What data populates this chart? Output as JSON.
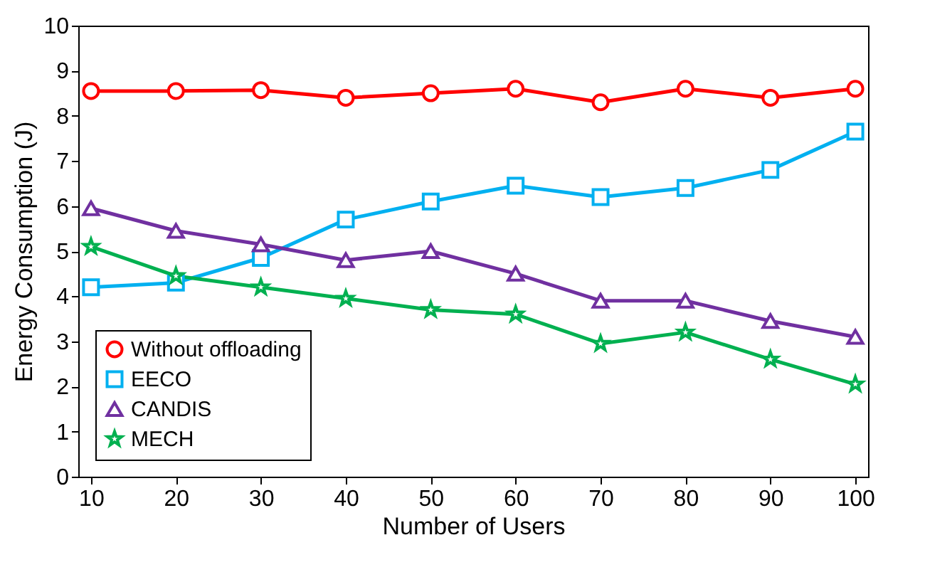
{
  "chart_data": {
    "type": "line",
    "xlabel": "Number of Users",
    "ylabel": "Energy Consumption (J)",
    "categories": [
      "10",
      "20",
      "30",
      "40",
      "50",
      "60",
      "70",
      "80",
      "90",
      "100"
    ],
    "ylim": [
      0,
      10
    ],
    "yticks": [
      0,
      1,
      2,
      3,
      4,
      5,
      6,
      7,
      8,
      9,
      10
    ],
    "grid": false,
    "legend": "bottom left",
    "line_style": "solid",
    "series": [
      {
        "name": "Without offloading",
        "color": "#ff0000",
        "marker": "circle",
        "values": [
          8.55,
          8.55,
          8.57,
          8.4,
          8.5,
          8.6,
          8.3,
          8.6,
          8.4,
          8.6
        ]
      },
      {
        "name": "EECO",
        "color": "#00b0f0",
        "marker": "square",
        "values": [
          4.2,
          4.3,
          4.85,
          5.7,
          6.1,
          6.45,
          6.2,
          6.4,
          6.8,
          7.65
        ]
      },
      {
        "name": "CANDIS",
        "color": "#7030a0",
        "marker": "triangle",
        "values": [
          5.95,
          5.45,
          5.15,
          4.8,
          5.0,
          4.5,
          3.9,
          3.9,
          3.45,
          3.1
        ]
      },
      {
        "name": "MECH",
        "color": "#00b050",
        "marker": "star",
        "values": [
          5.1,
          4.45,
          4.2,
          3.95,
          3.7,
          3.6,
          2.95,
          3.2,
          2.6,
          2.05
        ]
      }
    ]
  }
}
